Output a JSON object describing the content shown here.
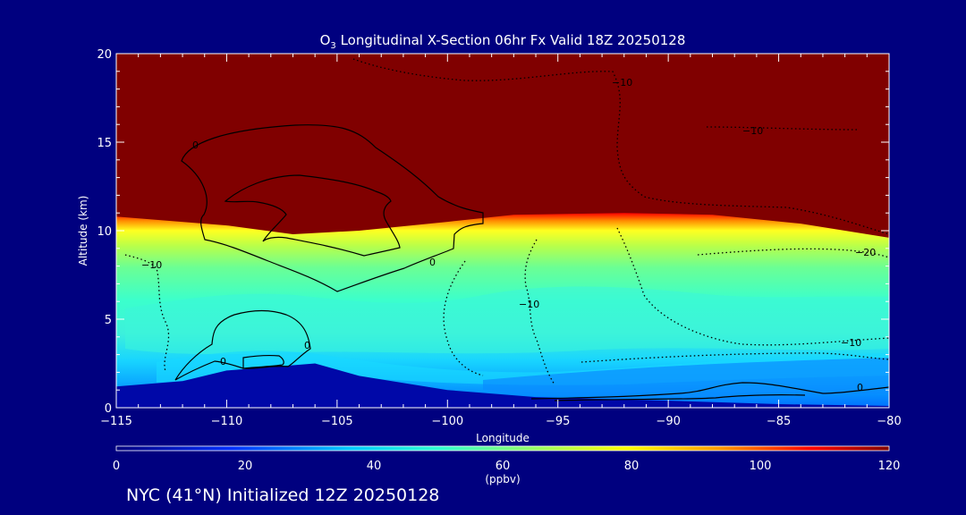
{
  "chart_data": {
    "type": "heatmap",
    "title": "O3 Longitudinal X-Section 06hr  Fx Valid 18Z 20250128",
    "title_parts": {
      "species": "O",
      "subscript": "3",
      "rest": " Longitudinal X-Section 06hr  Fx Valid 18Z 20250128"
    },
    "xlabel": "Longitude",
    "ylabel": "Altitude (km)",
    "xlim": [
      -115,
      -80
    ],
    "ylim": [
      0,
      20
    ],
    "x_ticks": [
      -115,
      -110,
      -105,
      -100,
      -95,
      -90,
      -85,
      -80
    ],
    "x_tick_labels": [
      "−115",
      "−110",
      "−105",
      "−100",
      "−95",
      "−90",
      "−85",
      "−80"
    ],
    "y_ticks": [
      0,
      5,
      10,
      15,
      20
    ],
    "y_tick_labels": [
      "0",
      "5",
      "10",
      "15",
      "20"
    ],
    "colorbar": {
      "label": "(ppbv)",
      "range": [
        0,
        120
      ],
      "ticks": [
        0,
        20,
        40,
        60,
        80,
        100,
        120
      ],
      "tick_labels": [
        "0",
        "20",
        "40",
        "60",
        "80",
        "100",
        "120"
      ],
      "colormap": "rainbow (blue-cyan-green-yellow-red)"
    },
    "field_description": "Ozone concentration (ppbv) vs longitude and altitude; stratospheric values >120 above ~10-11 km, ~45-60 ppbv in mid troposphere, ~30-40 near surface",
    "stratosphere_base_km": [
      {
        "lon": -115,
        "alt": 10.8
      },
      {
        "lon": -110,
        "alt": 10.3
      },
      {
        "lon": -107,
        "alt": 9.8
      },
      {
        "lon": -104,
        "alt": 10.0
      },
      {
        "lon": -100,
        "alt": 10.5
      },
      {
        "lon": -97,
        "alt": 10.9
      },
      {
        "lon": -92,
        "alt": 11.0
      },
      {
        "lon": -88,
        "alt": 10.9
      },
      {
        "lon": -84,
        "alt": 10.4
      },
      {
        "lon": -80,
        "alt": 9.6
      }
    ],
    "terrain_km": [
      {
        "lon": -115,
        "alt": 1.2
      },
      {
        "lon": -112,
        "alt": 1.5
      },
      {
        "lon": -110,
        "alt": 2.1
      },
      {
        "lon": -108,
        "alt": 2.3
      },
      {
        "lon": -106,
        "alt": 2.5
      },
      {
        "lon": -104,
        "alt": 1.8
      },
      {
        "lon": -100,
        "alt": 1.0
      },
      {
        "lon": -96,
        "alt": 0.6
      },
      {
        "lon": -90,
        "alt": 0.4
      },
      {
        "lon": -85,
        "alt": 0.2
      },
      {
        "lon": -80,
        "alt": 0.1
      }
    ],
    "contour_labels": [
      "0",
      "0",
      "0",
      "0",
      "−10",
      "−10",
      "−10",
      "−10",
      "−10",
      "−20",
      "0"
    ]
  },
  "footer": {
    "text": "NYC (41°N) Initialized 12Z 20250128"
  },
  "colors": {
    "background": "#00007f",
    "strat": "#800000",
    "ground": "#0008a8"
  }
}
